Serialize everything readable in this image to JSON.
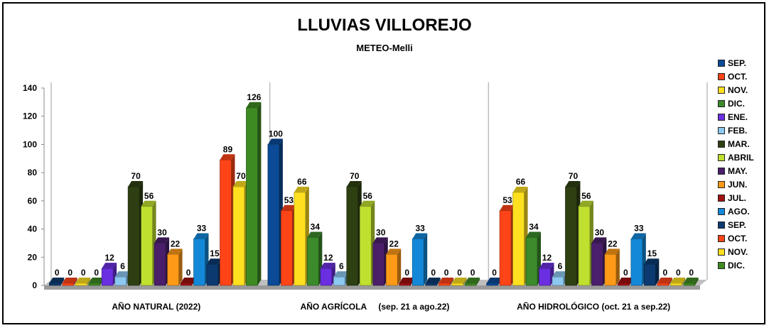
{
  "chart_data": {
    "type": "bar",
    "title": "LLUVIAS VILLOREJO",
    "subtitle": "METEO-Melli",
    "ylim": [
      0,
      140
    ],
    "yticks": [
      0,
      20,
      40,
      60,
      80,
      100,
      120,
      140
    ],
    "grid": false,
    "legend_position": "right",
    "groups": [
      {
        "label": "AÑO NATURAL (2022)",
        "bars": [
          {
            "series": 12,
            "value": 0
          },
          {
            "series": 13,
            "value": 0
          },
          {
            "series": 14,
            "value": 0
          },
          {
            "series": 15,
            "value": 0
          },
          {
            "series": 4,
            "value": 12
          },
          {
            "series": 5,
            "value": 6
          },
          {
            "series": 6,
            "value": 70
          },
          {
            "series": 7,
            "value": 56
          },
          {
            "series": 8,
            "value": 30
          },
          {
            "series": 9,
            "value": 22
          },
          {
            "series": 10,
            "value": 0
          },
          {
            "series": 11,
            "value": 33
          },
          {
            "series": 12,
            "value": 15
          },
          {
            "series": 13,
            "value": 89
          },
          {
            "series": 14,
            "value": 70
          },
          {
            "series": 15,
            "value": 126
          }
        ]
      },
      {
        "label": "AÑO AGRÍCOLA     (sep. 21 a ago.22)",
        "bars": [
          {
            "series": 0,
            "value": 100
          },
          {
            "series": 1,
            "value": 53
          },
          {
            "series": 2,
            "value": 66
          },
          {
            "series": 3,
            "value": 34
          },
          {
            "series": 4,
            "value": 12
          },
          {
            "series": 5,
            "value": 6
          },
          {
            "series": 6,
            "value": 70
          },
          {
            "series": 7,
            "value": 56
          },
          {
            "series": 8,
            "value": 30
          },
          {
            "series": 9,
            "value": 22
          },
          {
            "series": 10,
            "value": 0
          },
          {
            "series": 11,
            "value": 33
          },
          {
            "series": 12,
            "value": 0
          },
          {
            "series": 13,
            "value": 0
          },
          {
            "series": 14,
            "value": 0
          },
          {
            "series": 15,
            "value": 0
          }
        ]
      },
      {
        "label": "AÑO HIDROLÓGICO (oct. 21 a sep.22)",
        "bars": [
          {
            "series": 0,
            "value": 0
          },
          {
            "series": 1,
            "value": 53
          },
          {
            "series": 2,
            "value": 66
          },
          {
            "series": 3,
            "value": 34
          },
          {
            "series": 4,
            "value": 12
          },
          {
            "series": 5,
            "value": 6
          },
          {
            "series": 6,
            "value": 70
          },
          {
            "series": 7,
            "value": 56
          },
          {
            "series": 8,
            "value": 30
          },
          {
            "series": 9,
            "value": 22
          },
          {
            "series": 10,
            "value": 0
          },
          {
            "series": 11,
            "value": 33
          },
          {
            "series": 12,
            "value": 15
          },
          {
            "series": 13,
            "value": 0
          },
          {
            "series": 14,
            "value": 0
          },
          {
            "series": 15,
            "value": 0
          }
        ]
      }
    ],
    "series": [
      {
        "name": "SEP.",
        "color": "#0a4a96"
      },
      {
        "name": "OCT.",
        "color": "#ff4418"
      },
      {
        "name": "NOV.",
        "color": "#ffe020"
      },
      {
        "name": "DIC.",
        "color": "#3b8a2c"
      },
      {
        "name": "ENE.",
        "color": "#6a2fe0"
      },
      {
        "name": "FEB.",
        "color": "#8cc8f0"
      },
      {
        "name": "MAR.",
        "color": "#2e4012"
      },
      {
        "name": "ABRIL",
        "color": "#c0e030"
      },
      {
        "name": "MAY.",
        "color": "#4a1e6a"
      },
      {
        "name": "JUN.",
        "color": "#ff9a18"
      },
      {
        "name": "JUL.",
        "color": "#a01010"
      },
      {
        "name": "AGO.",
        "color": "#1488d8"
      },
      {
        "name": "SEP.",
        "color": "#0c3a70"
      },
      {
        "name": "OCT.",
        "color": "#ff4418"
      },
      {
        "name": "NOV.",
        "color": "#ffe020"
      },
      {
        "name": "DIC.",
        "color": "#3e8a22"
      }
    ]
  }
}
